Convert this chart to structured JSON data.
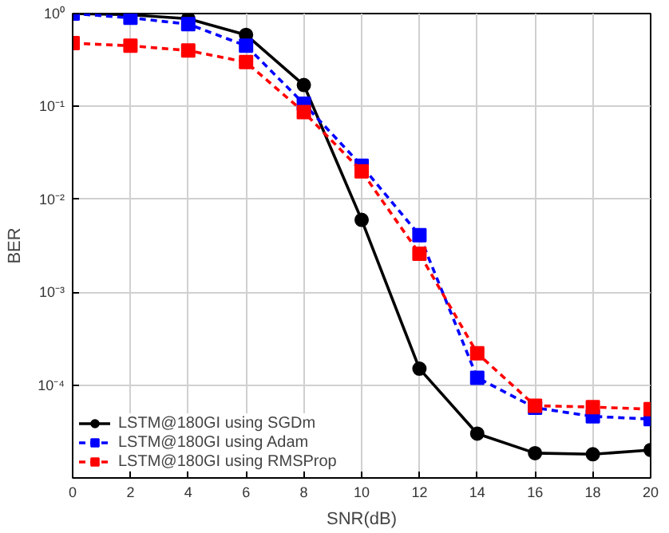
{
  "chart_data": {
    "type": "line",
    "xlabel": "SNR(dB)",
    "ylabel": "BER",
    "log": "y",
    "x": [
      0,
      2,
      4,
      6,
      8,
      10,
      12,
      14,
      16,
      18,
      20
    ],
    "series": [
      {
        "name": "LSTM@180GI using SGDm",
        "color": "#000000",
        "marker": "circle",
        "line_style": "solid",
        "values": [
          1.0,
          0.97,
          0.88,
          0.59,
          0.17,
          0.006,
          0.00015,
          3e-05,
          1.85e-05,
          1.8e-05,
          2e-05
        ]
      },
      {
        "name": "LSTM@180GI using Adam",
        "color": "#0000ff",
        "marker": "square",
        "line_style": "dashed",
        "values": [
          1.0,
          0.9,
          0.77,
          0.45,
          0.107,
          0.023,
          0.0041,
          0.00012,
          5.7e-05,
          4.6e-05,
          4.3e-05
        ]
      },
      {
        "name": "LSTM@180GI using RMSProp",
        "color": "#ff0000",
        "marker": "square",
        "line_style": "dashed",
        "values": [
          0.48,
          0.45,
          0.4,
          0.3,
          0.087,
          0.02,
          0.0026,
          0.00022,
          6e-05,
          5.8e-05,
          5.5e-05
        ]
      }
    ],
    "xlim": [
      0,
      20
    ],
    "xticks": [
      0,
      2,
      4,
      6,
      8,
      10,
      12,
      14,
      16,
      18,
      20
    ],
    "ylim": [
      1e-05,
      1
    ],
    "yticks": [
      {
        "value": 1e-05,
        "label": null
      },
      {
        "value": 0.0001,
        "label": "10⁻⁴"
      },
      {
        "value": 0.001,
        "label": "10⁻³"
      },
      {
        "value": 0.01,
        "label": "10⁻²"
      },
      {
        "value": 0.1,
        "label": "10⁻¹"
      },
      {
        "value": 1,
        "label": "10⁰"
      }
    ],
    "grid": true,
    "legend": "bottom left"
  }
}
